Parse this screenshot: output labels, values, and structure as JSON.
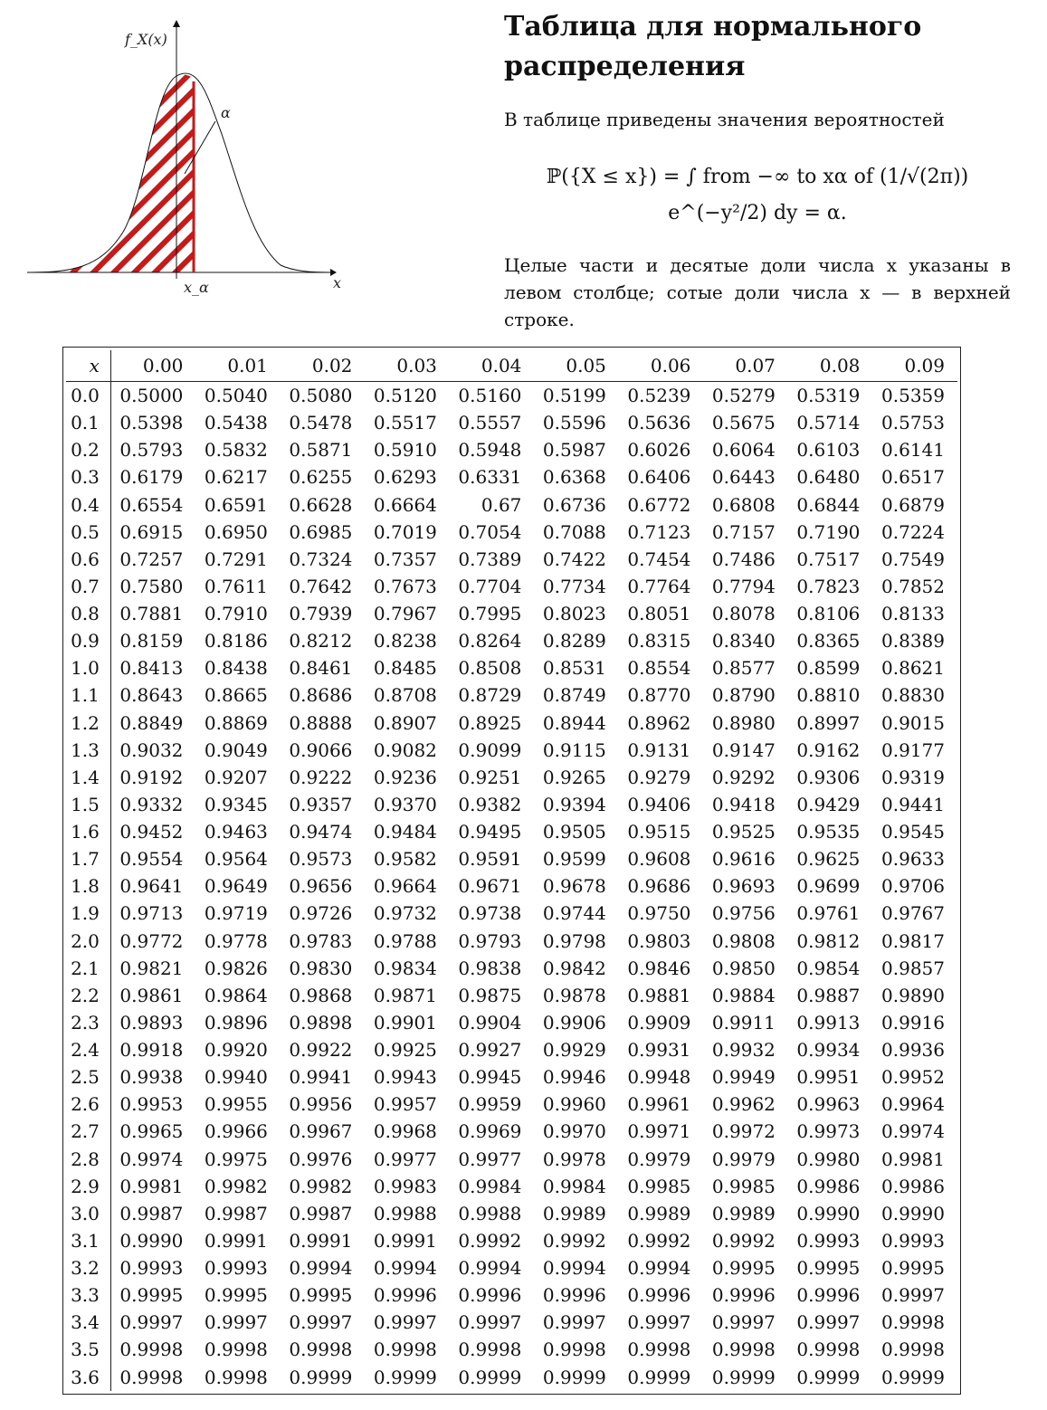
{
  "figure": {
    "ylabel": "f_X(x)",
    "xlabel": "x",
    "alpha_label": "α",
    "xalpha_label": "x_α",
    "colors": {
      "hatch": "#c41a1a",
      "curve": "#111111"
    }
  },
  "title": "Таблица для нормального распределения",
  "intro": "В таблице приведены значения вероятностей",
  "formula": "ℙ({X ≤ x}) = ∫ from −∞ to xα of (1/√(2π)) e^(−y²/2) dy = α.",
  "note": "Целые части и десятые доли числа x указаны в левом столбце; сотые доли числа x — в верхней строке.",
  "table": {
    "corner": "x",
    "columns": [
      "0.00",
      "0.01",
      "0.02",
      "0.03",
      "0.04",
      "0.05",
      "0.06",
      "0.07",
      "0.08",
      "0.09"
    ],
    "rows": [
      {
        "x": "0.0",
        "v": [
          "0.5000",
          "0.5040",
          "0.5080",
          "0.5120",
          "0.5160",
          "0.5199",
          "0.5239",
          "0.5279",
          "0.5319",
          "0.5359"
        ]
      },
      {
        "x": "0.1",
        "v": [
          "0.5398",
          "0.5438",
          "0.5478",
          "0.5517",
          "0.5557",
          "0.5596",
          "0.5636",
          "0.5675",
          "0.5714",
          "0.5753"
        ]
      },
      {
        "x": "0.2",
        "v": [
          "0.5793",
          "0.5832",
          "0.5871",
          "0.5910",
          "0.5948",
          "0.5987",
          "0.6026",
          "0.6064",
          "0.6103",
          "0.6141"
        ]
      },
      {
        "x": "0.3",
        "v": [
          "0.6179",
          "0.6217",
          "0.6255",
          "0.6293",
          "0.6331",
          "0.6368",
          "0.6406",
          "0.6443",
          "0.6480",
          "0.6517"
        ]
      },
      {
        "x": "0.4",
        "v": [
          "0.6554",
          "0.6591",
          "0.6628",
          "0.6664",
          "0.67",
          "0.6736",
          "0.6772",
          "0.6808",
          "0.6844",
          "0.6879"
        ]
      },
      {
        "x": "0.5",
        "v": [
          "0.6915",
          "0.6950",
          "0.6985",
          "0.7019",
          "0.7054",
          "0.7088",
          "0.7123",
          "0.7157",
          "0.7190",
          "0.7224"
        ]
      },
      {
        "x": "0.6",
        "v": [
          "0.7257",
          "0.7291",
          "0.7324",
          "0.7357",
          "0.7389",
          "0.7422",
          "0.7454",
          "0.7486",
          "0.7517",
          "0.7549"
        ]
      },
      {
        "x": "0.7",
        "v": [
          "0.7580",
          "0.7611",
          "0.7642",
          "0.7673",
          "0.7704",
          "0.7734",
          "0.7764",
          "0.7794",
          "0.7823",
          "0.7852"
        ]
      },
      {
        "x": "0.8",
        "v": [
          "0.7881",
          "0.7910",
          "0.7939",
          "0.7967",
          "0.7995",
          "0.8023",
          "0.8051",
          "0.8078",
          "0.8106",
          "0.8133"
        ]
      },
      {
        "x": "0.9",
        "v": [
          "0.8159",
          "0.8186",
          "0.8212",
          "0.8238",
          "0.8264",
          "0.8289",
          "0.8315",
          "0.8340",
          "0.8365",
          "0.8389"
        ]
      },
      {
        "x": "1.0",
        "v": [
          "0.8413",
          "0.8438",
          "0.8461",
          "0.8485",
          "0.8508",
          "0.8531",
          "0.8554",
          "0.8577",
          "0.8599",
          "0.8621"
        ]
      },
      {
        "x": "1.1",
        "v": [
          "0.8643",
          "0.8665",
          "0.8686",
          "0.8708",
          "0.8729",
          "0.8749",
          "0.8770",
          "0.8790",
          "0.8810",
          "0.8830"
        ]
      },
      {
        "x": "1.2",
        "v": [
          "0.8849",
          "0.8869",
          "0.8888",
          "0.8907",
          "0.8925",
          "0.8944",
          "0.8962",
          "0.8980",
          "0.8997",
          "0.9015"
        ]
      },
      {
        "x": "1.3",
        "v": [
          "0.9032",
          "0.9049",
          "0.9066",
          "0.9082",
          "0.9099",
          "0.9115",
          "0.9131",
          "0.9147",
          "0.9162",
          "0.9177"
        ]
      },
      {
        "x": "1.4",
        "v": [
          "0.9192",
          "0.9207",
          "0.9222",
          "0.9236",
          "0.9251",
          "0.9265",
          "0.9279",
          "0.9292",
          "0.9306",
          "0.9319"
        ]
      },
      {
        "x": "1.5",
        "v": [
          "0.9332",
          "0.9345",
          "0.9357",
          "0.9370",
          "0.9382",
          "0.9394",
          "0.9406",
          "0.9418",
          "0.9429",
          "0.9441"
        ]
      },
      {
        "x": "1.6",
        "v": [
          "0.9452",
          "0.9463",
          "0.9474",
          "0.9484",
          "0.9495",
          "0.9505",
          "0.9515",
          "0.9525",
          "0.9535",
          "0.9545"
        ]
      },
      {
        "x": "1.7",
        "v": [
          "0.9554",
          "0.9564",
          "0.9573",
          "0.9582",
          "0.9591",
          "0.9599",
          "0.9608",
          "0.9616",
          "0.9625",
          "0.9633"
        ]
      },
      {
        "x": "1.8",
        "v": [
          "0.9641",
          "0.9649",
          "0.9656",
          "0.9664",
          "0.9671",
          "0.9678",
          "0.9686",
          "0.9693",
          "0.9699",
          "0.9706"
        ]
      },
      {
        "x": "1.9",
        "v": [
          "0.9713",
          "0.9719",
          "0.9726",
          "0.9732",
          "0.9738",
          "0.9744",
          "0.9750",
          "0.9756",
          "0.9761",
          "0.9767"
        ]
      },
      {
        "x": "2.0",
        "v": [
          "0.9772",
          "0.9778",
          "0.9783",
          "0.9788",
          "0.9793",
          "0.9798",
          "0.9803",
          "0.9808",
          "0.9812",
          "0.9817"
        ]
      },
      {
        "x": "2.1",
        "v": [
          "0.9821",
          "0.9826",
          "0.9830",
          "0.9834",
          "0.9838",
          "0.9842",
          "0.9846",
          "0.9850",
          "0.9854",
          "0.9857"
        ]
      },
      {
        "x": "2.2",
        "v": [
          "0.9861",
          "0.9864",
          "0.9868",
          "0.9871",
          "0.9875",
          "0.9878",
          "0.9881",
          "0.9884",
          "0.9887",
          "0.9890"
        ]
      },
      {
        "x": "2.3",
        "v": [
          "0.9893",
          "0.9896",
          "0.9898",
          "0.9901",
          "0.9904",
          "0.9906",
          "0.9909",
          "0.9911",
          "0.9913",
          "0.9916"
        ]
      },
      {
        "x": "2.4",
        "v": [
          "0.9918",
          "0.9920",
          "0.9922",
          "0.9925",
          "0.9927",
          "0.9929",
          "0.9931",
          "0.9932",
          "0.9934",
          "0.9936"
        ]
      },
      {
        "x": "2.5",
        "v": [
          "0.9938",
          "0.9940",
          "0.9941",
          "0.9943",
          "0.9945",
          "0.9946",
          "0.9948",
          "0.9949",
          "0.9951",
          "0.9952"
        ]
      },
      {
        "x": "2.6",
        "v": [
          "0.9953",
          "0.9955",
          "0.9956",
          "0.9957",
          "0.9959",
          "0.9960",
          "0.9961",
          "0.9962",
          "0.9963",
          "0.9964"
        ]
      },
      {
        "x": "2.7",
        "v": [
          "0.9965",
          "0.9966",
          "0.9967",
          "0.9968",
          "0.9969",
          "0.9970",
          "0.9971",
          "0.9972",
          "0.9973",
          "0.9974"
        ]
      },
      {
        "x": "2.8",
        "v": [
          "0.9974",
          "0.9975",
          "0.9976",
          "0.9977",
          "0.9977",
          "0.9978",
          "0.9979",
          "0.9979",
          "0.9980",
          "0.9981"
        ]
      },
      {
        "x": "2.9",
        "v": [
          "0.9981",
          "0.9982",
          "0.9982",
          "0.9983",
          "0.9984",
          "0.9984",
          "0.9985",
          "0.9985",
          "0.9986",
          "0.9986"
        ]
      },
      {
        "x": "3.0",
        "v": [
          "0.9987",
          "0.9987",
          "0.9987",
          "0.9988",
          "0.9988",
          "0.9989",
          "0.9989",
          "0.9989",
          "0.9990",
          "0.9990"
        ]
      },
      {
        "x": "3.1",
        "v": [
          "0.9990",
          "0.9991",
          "0.9991",
          "0.9991",
          "0.9992",
          "0.9992",
          "0.9992",
          "0.9992",
          "0.9993",
          "0.9993"
        ]
      },
      {
        "x": "3.2",
        "v": [
          "0.9993",
          "0.9993",
          "0.9994",
          "0.9994",
          "0.9994",
          "0.9994",
          "0.9994",
          "0.9995",
          "0.9995",
          "0.9995"
        ]
      },
      {
        "x": "3.3",
        "v": [
          "0.9995",
          "0.9995",
          "0.9995",
          "0.9996",
          "0.9996",
          "0.9996",
          "0.9996",
          "0.9996",
          "0.9996",
          "0.9997"
        ]
      },
      {
        "x": "3.4",
        "v": [
          "0.9997",
          "0.9997",
          "0.9997",
          "0.9997",
          "0.9997",
          "0.9997",
          "0.9997",
          "0.9997",
          "0.9997",
          "0.9998"
        ]
      },
      {
        "x": "3.5",
        "v": [
          "0.9998",
          "0.9998",
          "0.9998",
          "0.9998",
          "0.9998",
          "0.9998",
          "0.9998",
          "0.9998",
          "0.9998",
          "0.9998"
        ]
      },
      {
        "x": "3.6",
        "v": [
          "0.9998",
          "0.9998",
          "0.9999",
          "0.9999",
          "0.9999",
          "0.9999",
          "0.9999",
          "0.9999",
          "0.9999",
          "0.9999"
        ]
      }
    ]
  }
}
